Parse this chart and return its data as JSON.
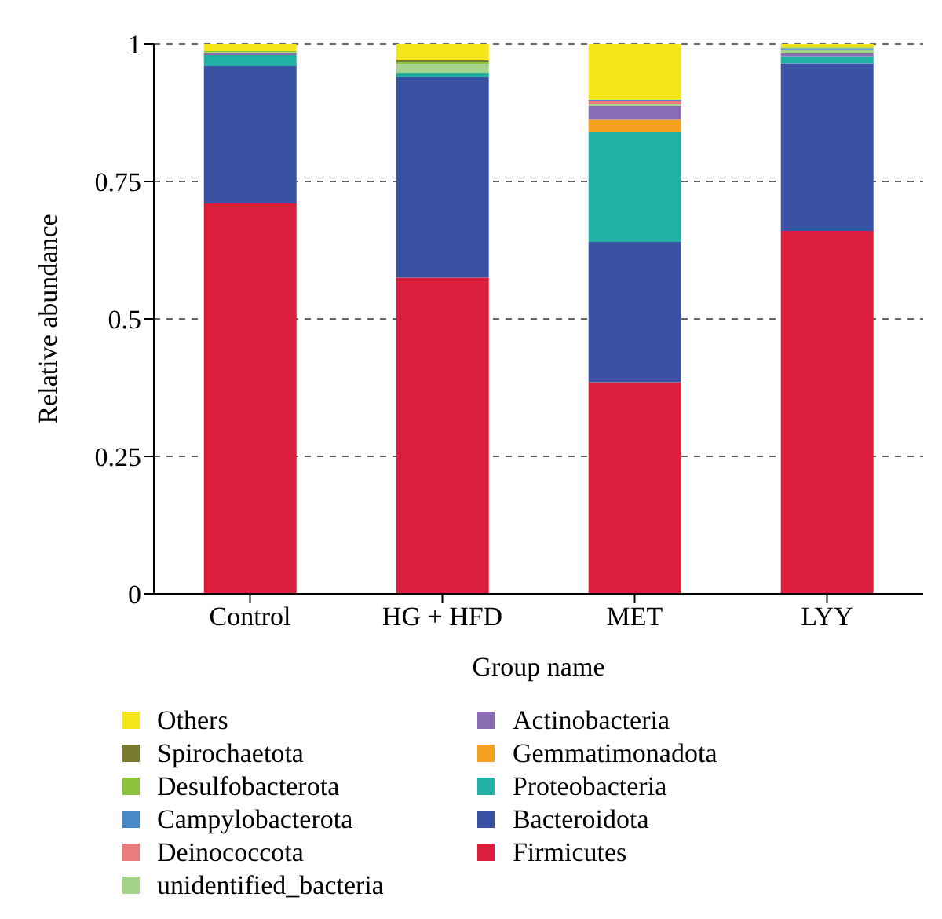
{
  "chart_data": {
    "type": "bar",
    "stacked": true,
    "xlabel": "Group name",
    "ylabel": "Relative abundance",
    "categories": [
      "Control",
      "HG + HFD",
      "MET",
      "LYY"
    ],
    "ylim": [
      0,
      1
    ],
    "yticks": [
      0,
      0.25,
      0.5,
      0.75,
      1
    ],
    "grid": "y",
    "legend": "bottom",
    "series": [
      {
        "name": "Firmicutes",
        "color": "#dc1e3c",
        "values": [
          0.71,
          0.575,
          0.385,
          0.66
        ]
      },
      {
        "name": "Bacteroidota",
        "color": "#3a52a4",
        "values": [
          0.25,
          0.365,
          0.255,
          0.305
        ]
      },
      {
        "name": "Proteobacteria",
        "color": "#20b0a4",
        "values": [
          0.02,
          0.007,
          0.2,
          0.013
        ]
      },
      {
        "name": "Gemmatimonadota",
        "color": "#f4a020",
        "values": [
          0,
          0,
          0.022,
          0
        ]
      },
      {
        "name": "Actinobacteria",
        "color": "#8a6cb4",
        "values": [
          0.003,
          0,
          0.025,
          0.005
        ]
      },
      {
        "name": "unidentified_bacteria",
        "color": "#a4d48c",
        "values": [
          0.002,
          0.017,
          0.003,
          0.006
        ]
      },
      {
        "name": "Deinococcota",
        "color": "#ec7c7c",
        "values": [
          0,
          0,
          0.006,
          0
        ]
      },
      {
        "name": "Campylobacterota",
        "color": "#4a88c8",
        "values": [
          0,
          0,
          0.003,
          0.003
        ]
      },
      {
        "name": "Desulfobacterota",
        "color": "#8cc43c",
        "values": [
          0.002,
          0.003,
          0,
          0.002
        ]
      },
      {
        "name": "Spirochaetota",
        "color": "#7a7a30",
        "values": [
          0,
          0.003,
          0,
          0
        ]
      },
      {
        "name": "Others",
        "color": "#f5e61a",
        "values": [
          0.013,
          0.03,
          0.101,
          0.006
        ]
      }
    ]
  }
}
